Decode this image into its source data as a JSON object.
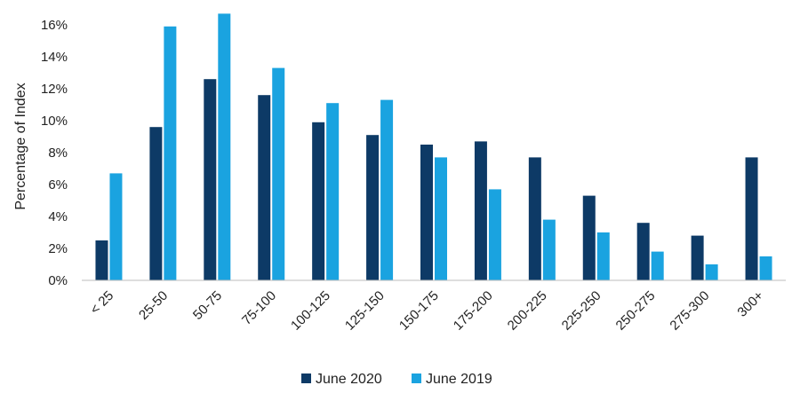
{
  "chart_data": {
    "type": "bar",
    "ylabel": "Percentage of Index",
    "xlabel": "",
    "ylim": [
      0,
      17
    ],
    "yticks": [
      0,
      2,
      4,
      6,
      8,
      10,
      12,
      14,
      16
    ],
    "ytick_format": "%",
    "categories": [
      "< 25",
      "25-50",
      "50-75",
      "75-100",
      "100-125",
      "125-150",
      "150-175",
      "175-200",
      "200-225",
      "225-250",
      "250-275",
      "275-300",
      "300+"
    ],
    "series": [
      {
        "name": "June 2020",
        "color": "#0d3a66",
        "values": [
          2.5,
          9.6,
          12.6,
          11.6,
          9.9,
          9.1,
          8.5,
          8.7,
          7.7,
          5.3,
          3.6,
          2.8,
          7.7
        ]
      },
      {
        "name": "June 2019",
        "color": "#1aa3e0",
        "values": [
          6.7,
          15.9,
          16.7,
          13.3,
          11.1,
          11.3,
          7.7,
          5.7,
          3.8,
          3.0,
          1.8,
          1.0,
          1.5
        ]
      }
    ],
    "legend_position": "bottom-center",
    "grid": false
  }
}
